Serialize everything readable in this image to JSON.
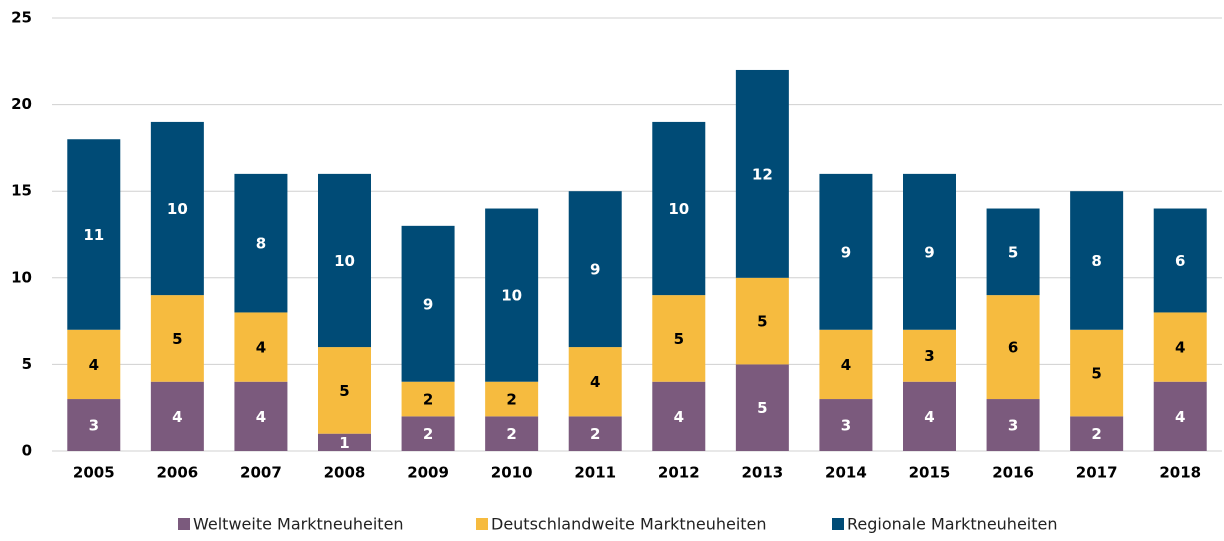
{
  "chart_data": {
    "type": "stacked_bar",
    "categories": [
      "2005",
      "2006",
      "2007",
      "2008",
      "2009",
      "2010",
      "2011",
      "2012",
      "2013",
      "2014",
      "2015",
      "2016",
      "2017",
      "2018"
    ],
    "series": [
      {
        "name": "Weltweite Marktneuheiten",
        "color": "#7b5a7d",
        "values": [
          3,
          4,
          4,
          1,
          2,
          2,
          2,
          4,
          5,
          3,
          4,
          3,
          2,
          4
        ]
      },
      {
        "name": "Deutschlandweite Marktneuheiten",
        "color": "#f6bb3f",
        "values": [
          4,
          5,
          4,
          5,
          2,
          2,
          4,
          5,
          5,
          4,
          3,
          6,
          5,
          4
        ]
      },
      {
        "name": "Regionale Marktneuheiten",
        "color": "#004b76",
        "values": [
          11,
          10,
          8,
          10,
          9,
          10,
          9,
          10,
          12,
          9,
          9,
          5,
          8,
          6
        ]
      }
    ],
    "ylim": [
      0,
      25
    ],
    "yticks": [
      0,
      5,
      10,
      15,
      20,
      25
    ],
    "grid": true,
    "legend": "bottom"
  }
}
